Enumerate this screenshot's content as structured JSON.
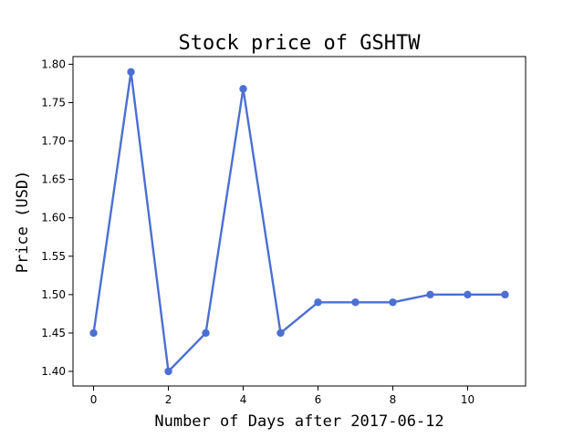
{
  "chart_data": {
    "type": "line",
    "title": "Stock price of GSHTW",
    "xlabel": "Number of Days after 2017-06-12",
    "ylabel": "Price (USD)",
    "xlim": [
      -0.55,
      11.55
    ],
    "ylim": [
      1.381,
      1.81
    ],
    "xticks": [
      0,
      2,
      4,
      6,
      8,
      10
    ],
    "yticks": [
      1.4,
      1.45,
      1.5,
      1.55,
      1.6,
      1.65,
      1.7,
      1.75,
      1.8
    ],
    "xtick_labels": [
      "0",
      "2",
      "4",
      "6",
      "8",
      "10"
    ],
    "ytick_labels": [
      "1.40",
      "1.45",
      "1.50",
      "1.55",
      "1.60",
      "1.65",
      "1.70",
      "1.75",
      "1.80"
    ],
    "grid": false,
    "series": [
      {
        "color": "#4c6fd1",
        "marker": "circle",
        "x": [
          0,
          1,
          2,
          3,
          4,
          5,
          6,
          7,
          8,
          9,
          10,
          11
        ],
        "y": [
          1.45,
          1.79,
          1.4,
          1.45,
          1.768,
          1.45,
          1.49,
          1.49,
          1.49,
          1.5,
          1.5,
          1.5
        ]
      }
    ]
  }
}
